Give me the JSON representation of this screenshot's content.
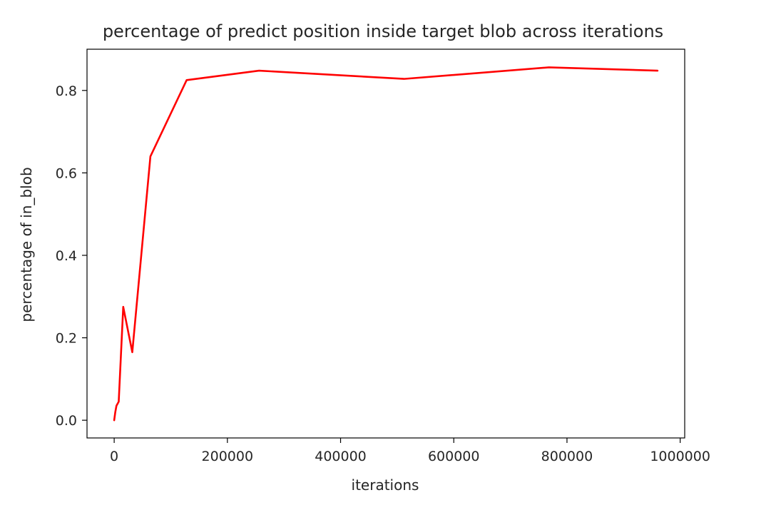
{
  "chart_data": {
    "type": "line",
    "title": "percentage of predict position inside target blob across iterations",
    "xlabel": "iterations",
    "ylabel": "percentage of in_blob",
    "xlim": [
      -48000,
      1008000
    ],
    "ylim": [
      -0.043,
      0.9
    ],
    "x_ticks": [
      0,
      200000,
      400000,
      600000,
      800000,
      1000000
    ],
    "x_tick_labels": [
      "0",
      "200000",
      "400000",
      "600000",
      "800000",
      "1000000"
    ],
    "y_ticks": [
      0.0,
      0.2,
      0.4,
      0.6,
      0.8
    ],
    "y_tick_labels": [
      "0.0",
      "0.2",
      "0.4",
      "0.6",
      "0.8"
    ],
    "grid": false,
    "series": [
      {
        "color": "#ff0000",
        "x": [
          0,
          2000,
          4000,
          8000,
          16000,
          32000,
          64000,
          128000,
          256000,
          512000,
          768000,
          960000
        ],
        "y": [
          0.0,
          0.02,
          0.035,
          0.045,
          0.275,
          0.165,
          0.64,
          0.825,
          0.848,
          0.828,
          0.856,
          0.848
        ]
      }
    ]
  }
}
